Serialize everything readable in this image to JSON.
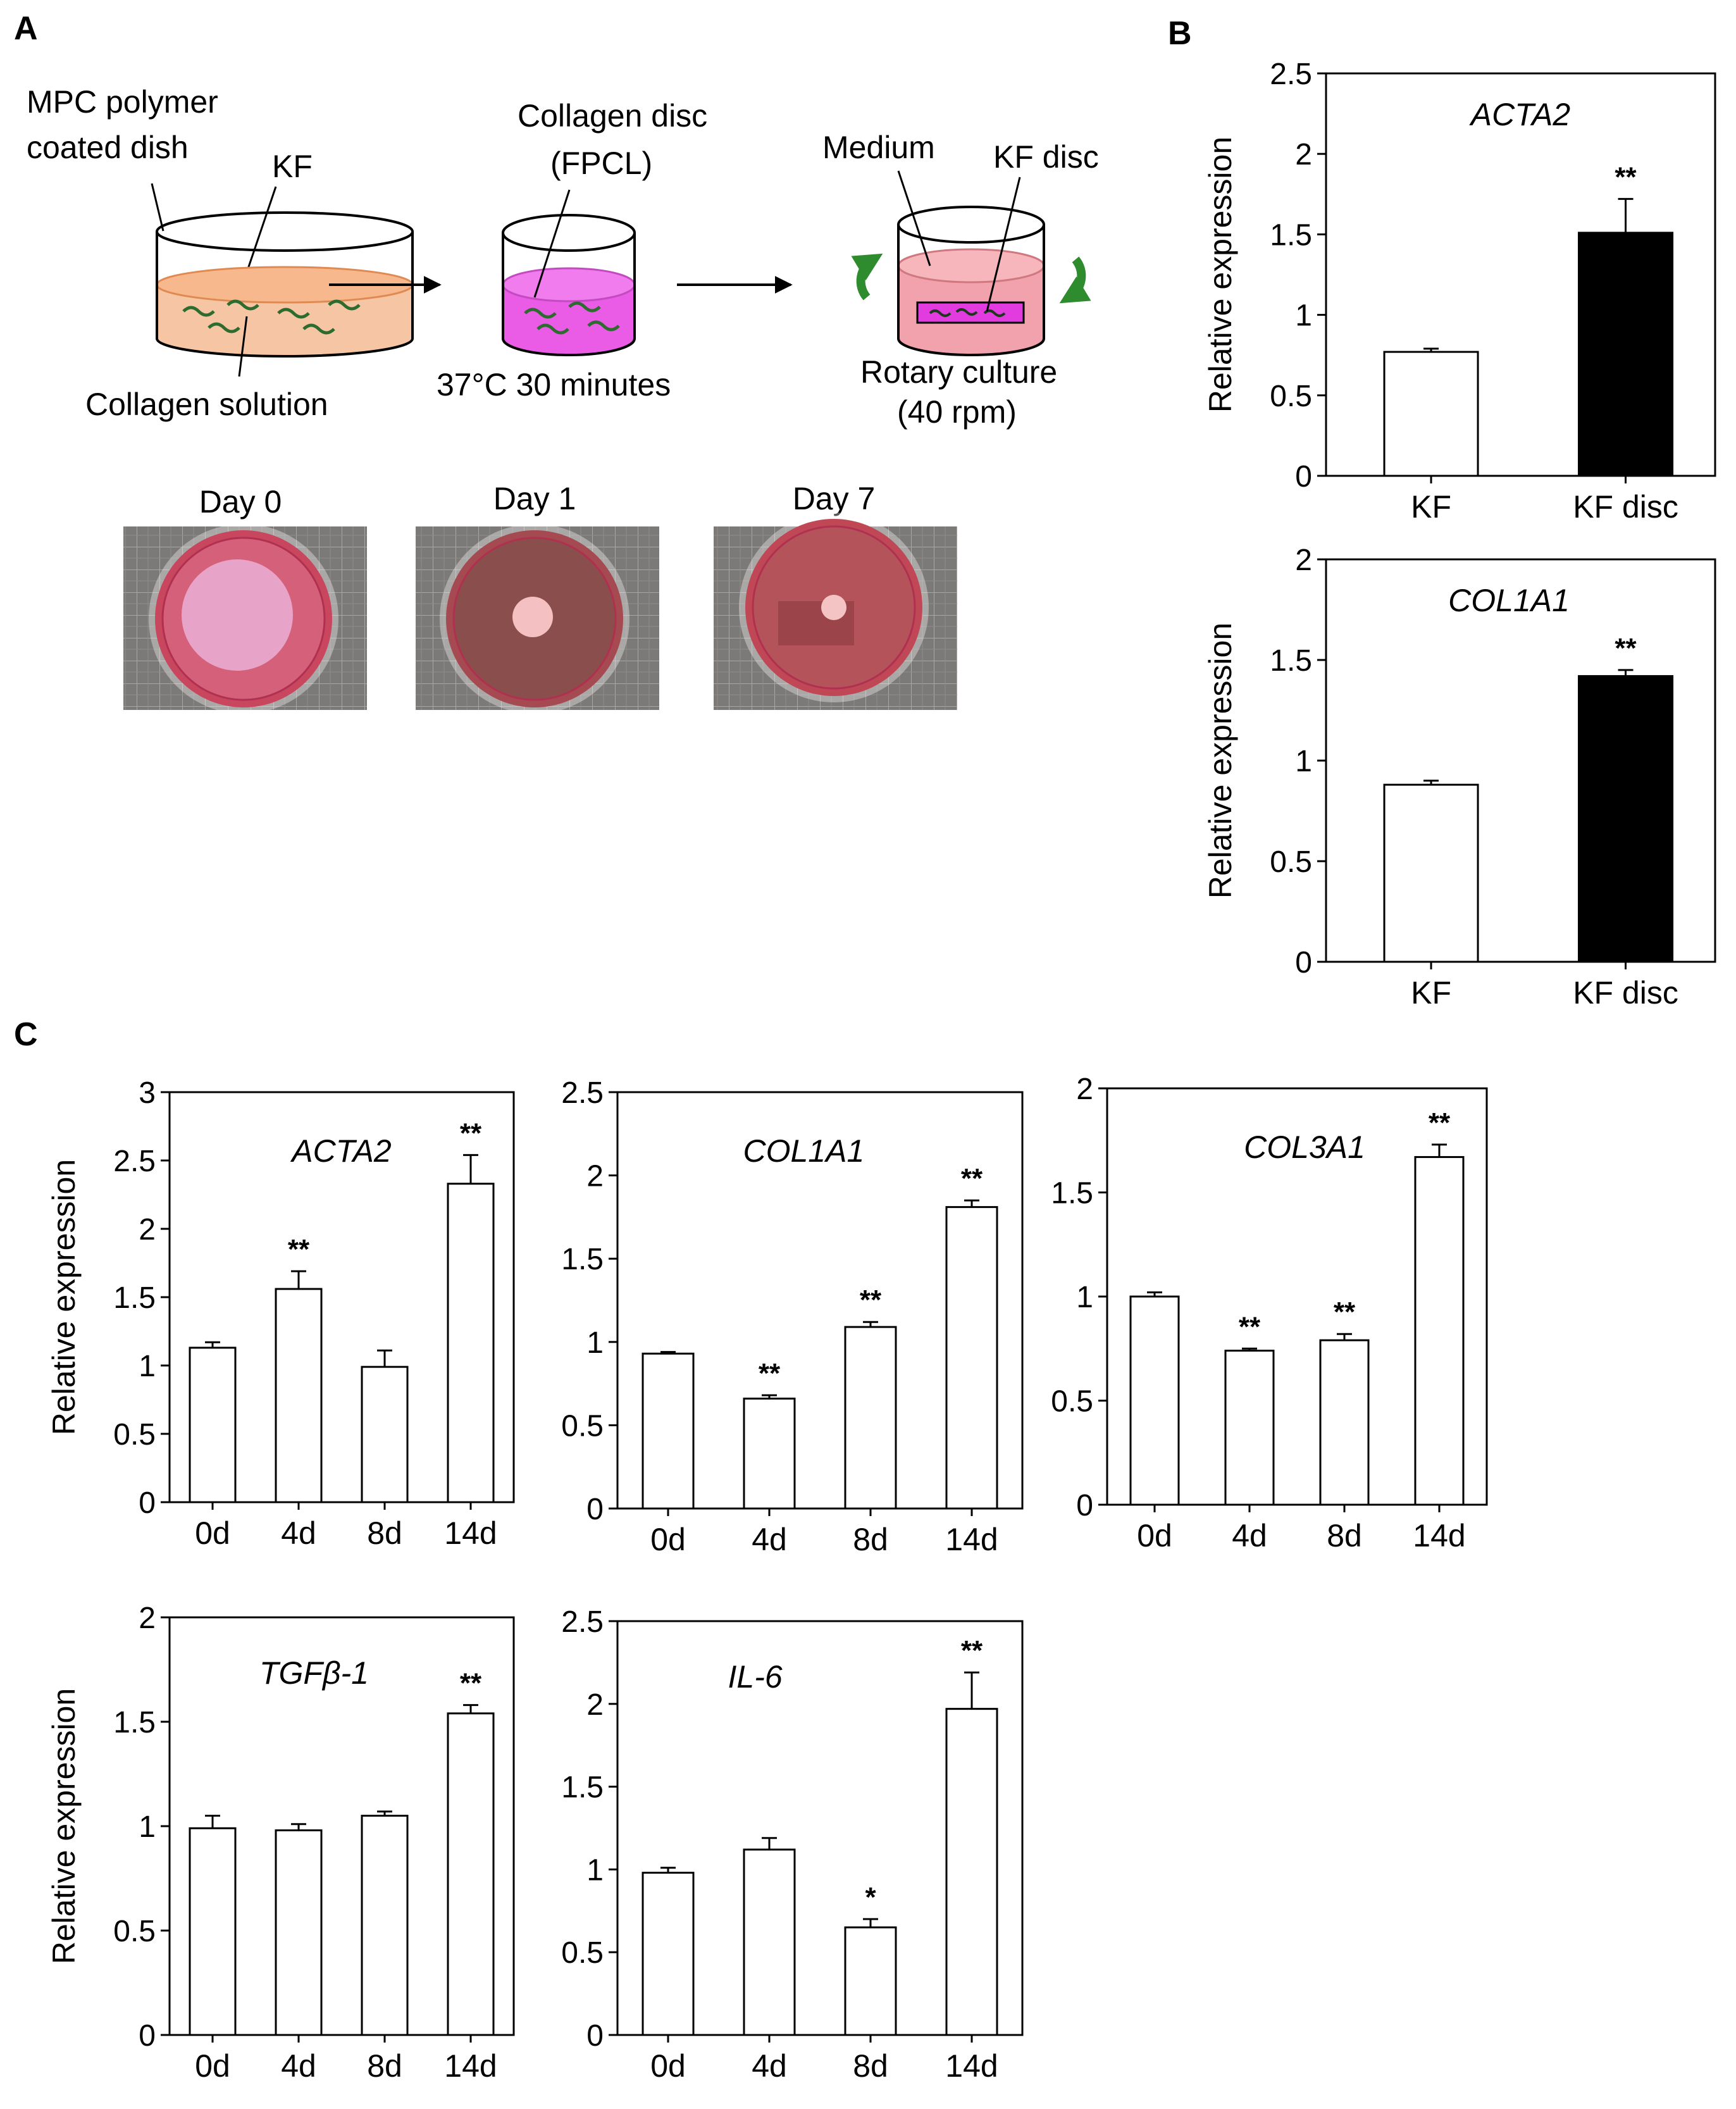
{
  "panel_labels": {
    "a": "A",
    "b": "B",
    "c": "C"
  },
  "schematic": {
    "step1": {
      "label_top": "MPC polymer",
      "label_top2": "coated  dish",
      "cells_label": "KF",
      "bottom_label": "Collagen solution",
      "fill_color": "#f6c6a4"
    },
    "step2": {
      "label_top": "Collagen disc",
      "label_top2": "(FPCL)",
      "bottom_label": "37°C 30 minutes",
      "fill_color": "#ea5ce6"
    },
    "step3": {
      "medium_label": "Medium",
      "disc_label": "KF disc",
      "bottom_label": "Rotary culture",
      "bottom_label2": "(40 rpm)",
      "fill_color": "#f2a2ac",
      "arrow_color": "#2e8b2e"
    }
  },
  "photos": [
    {
      "label": "Day 0",
      "disc_size": "large"
    },
    {
      "label": "Day 1",
      "disc_size": "small"
    },
    {
      "label": "Day 7",
      "disc_size": "tiny"
    }
  ],
  "chart_data": [
    {
      "id": "B1",
      "type": "bar",
      "title": "ACTA2",
      "ylabel": "Relative expression",
      "ylim": [
        0,
        2.5
      ],
      "ticks": [
        "0",
        "0.5",
        "1",
        "1.5",
        "2",
        "2.5"
      ],
      "categories": [
        "KF",
        "KF disc"
      ],
      "values": [
        0.77,
        1.51
      ],
      "errors": [
        0.02,
        0.21
      ],
      "fills": [
        "#ffffff",
        "#000000"
      ],
      "significance": [
        "",
        "**"
      ]
    },
    {
      "id": "B2",
      "type": "bar",
      "title": "COL1A1",
      "ylabel": "Relative expression",
      "ylim": [
        0,
        2
      ],
      "ticks": [
        "0",
        "0.5",
        "1",
        "1.5",
        "2"
      ],
      "categories": [
        "KF",
        "KF disc"
      ],
      "values": [
        0.88,
        1.42
      ],
      "errors": [
        0.02,
        0.03
      ],
      "fills": [
        "#ffffff",
        "#000000"
      ],
      "significance": [
        "",
        "**"
      ]
    },
    {
      "id": "C1",
      "type": "bar",
      "title": "ACTA2",
      "ylabel": "Relative expression",
      "ylim": [
        0,
        3
      ],
      "ticks": [
        "0",
        "0.5",
        "1",
        "1.5",
        "2",
        "2.5",
        "3"
      ],
      "categories": [
        "0d",
        "4d",
        "8d",
        "14d"
      ],
      "values": [
        1.13,
        1.56,
        0.99,
        2.33
      ],
      "errors": [
        0.04,
        0.13,
        0.12,
        0.21
      ],
      "significance": [
        "",
        "**",
        "",
        "**"
      ]
    },
    {
      "id": "C2",
      "type": "bar",
      "title": "COL1A1",
      "ylabel": "",
      "ylim": [
        0,
        2.5
      ],
      "ticks": [
        "0",
        "0.5",
        "1",
        "1.5",
        "2",
        "2.5"
      ],
      "categories": [
        "0d",
        "4d",
        "8d",
        "14d"
      ],
      "values": [
        0.93,
        0.66,
        1.09,
        1.81
      ],
      "errors": [
        0.01,
        0.02,
        0.03,
        0.04
      ],
      "significance": [
        "",
        "**",
        "**",
        "**"
      ]
    },
    {
      "id": "C3",
      "type": "bar",
      "title": "COL3A1",
      "ylabel": "",
      "ylim": [
        0,
        2
      ],
      "ticks": [
        "0",
        "0.5",
        "1",
        "1.5",
        "2"
      ],
      "categories": [
        "0d",
        "4d",
        "8d",
        "14d"
      ],
      "values": [
        1.0,
        0.74,
        0.79,
        1.67
      ],
      "errors": [
        0.02,
        0.01,
        0.03,
        0.06
      ],
      "significance": [
        "",
        "**",
        "**",
        "**"
      ]
    },
    {
      "id": "C4",
      "type": "bar",
      "title": "TGFβ-1",
      "ylabel": "Relative expression",
      "ylim": [
        0,
        2
      ],
      "ticks": [
        "0",
        "0.5",
        "1",
        "1.5",
        "2"
      ],
      "categories": [
        "0d",
        "4d",
        "8d",
        "14d"
      ],
      "values": [
        0.99,
        0.98,
        1.05,
        1.54
      ],
      "errors": [
        0.06,
        0.03,
        0.02,
        0.04
      ],
      "significance": [
        "",
        "",
        "",
        "**"
      ]
    },
    {
      "id": "C5",
      "type": "bar",
      "title": "IL-6",
      "ylabel": "",
      "ylim": [
        0,
        2.5
      ],
      "ticks": [
        "0",
        "0.5",
        "1.5",
        "1",
        "2",
        "2.5"
      ],
      "tick_values": [
        0,
        0.5,
        1.5,
        1,
        2,
        2.5
      ],
      "categories": [
        "0d",
        "4d",
        "8d",
        "14d"
      ],
      "values": [
        0.98,
        1.12,
        0.65,
        1.97
      ],
      "errors": [
        0.03,
        0.07,
        0.05,
        0.22
      ],
      "significance": [
        "",
        "",
        "*",
        "**"
      ]
    }
  ]
}
